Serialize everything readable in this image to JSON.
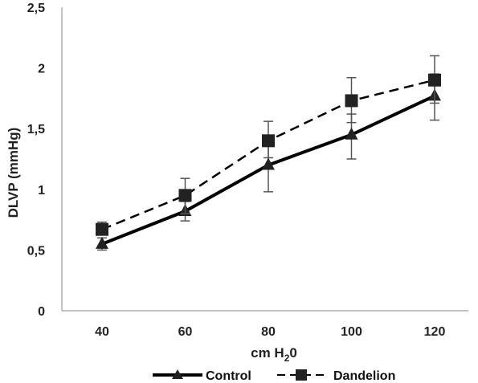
{
  "chart_data": {
    "type": "line",
    "ylabel": "DLVP (mmHg)",
    "xlabel_parts": {
      "main": "cm H",
      "sub": "2",
      "tail": "0"
    },
    "categories": [
      "40",
      "60",
      "80",
      "100",
      "120"
    ],
    "ylim": [
      0,
      2.5
    ],
    "yticks": [
      0,
      0.5,
      1,
      1.5,
      2,
      2.5
    ],
    "ytick_labels": [
      "0",
      "0,5",
      "1",
      "1,5",
      "2",
      "2,5"
    ],
    "grid": false,
    "legend_position": "bottom",
    "series": [
      {
        "name": "Control",
        "marker": "triangle",
        "line_style": "solid",
        "values": [
          0.55,
          0.82,
          1.2,
          1.45,
          1.77
        ],
        "err_low": [
          0.5,
          0.74,
          0.98,
          1.25,
          1.57
        ],
        "err_high": [
          0.6,
          0.9,
          1.4,
          1.62,
          1.95
        ]
      },
      {
        "name": "Dandelion",
        "marker": "square",
        "line_style": "dashed",
        "values": [
          0.67,
          0.95,
          1.4,
          1.73,
          1.9
        ],
        "err_low": [
          0.63,
          0.8,
          1.26,
          1.55,
          1.71
        ],
        "err_high": [
          0.73,
          1.09,
          1.56,
          1.92,
          2.1
        ]
      }
    ],
    "colors": {
      "line": "#000000",
      "marker": "#000000",
      "marker_fill": "#222222",
      "error_bar": "#555555",
      "axis": "#888888"
    }
  }
}
